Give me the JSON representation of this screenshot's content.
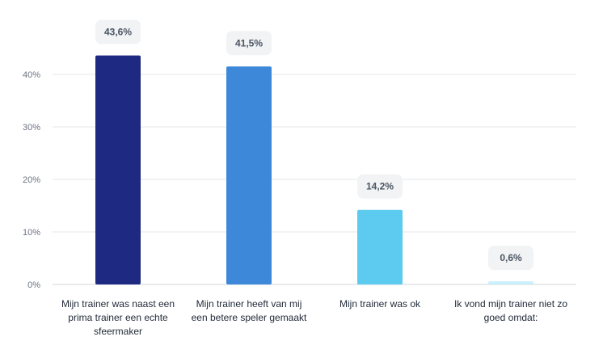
{
  "chart_data": {
    "type": "bar",
    "categories": [
      "Mijn trainer was naast een prima trainer een echte sfeermaker",
      "Mijn trainer heeft van mij een betere speler gemaakt",
      "Mijn trainer was ok",
      "Ik vond mijn trainer niet zo goed omdat:"
    ],
    "category_lines": [
      [
        "Mijn trainer was naast een",
        "prima trainer een echte",
        "sfeermaker"
      ],
      [
        "Mijn trainer heeft van mij",
        "een betere speler gemaakt"
      ],
      [
        "Mijn trainer was ok"
      ],
      [
        "Ik vond mijn trainer niet zo",
        "goed omdat:"
      ]
    ],
    "values": [
      43.6,
      41.5,
      14.2,
      0.6
    ],
    "value_labels": [
      "43,6%",
      "41,5%",
      "14,2%",
      "0,6%"
    ],
    "colors": [
      "#1e2a82",
      "#3d88d8",
      "#5ccbef",
      "#c9f0fb"
    ],
    "y_ticks": [
      0,
      10,
      20,
      30,
      40
    ],
    "y_tick_labels": [
      "0%",
      "10%",
      "20%",
      "30%",
      "40%"
    ],
    "ylim": [
      0,
      45
    ],
    "grid": true,
    "title": "",
    "xlabel": "",
    "ylabel": ""
  }
}
